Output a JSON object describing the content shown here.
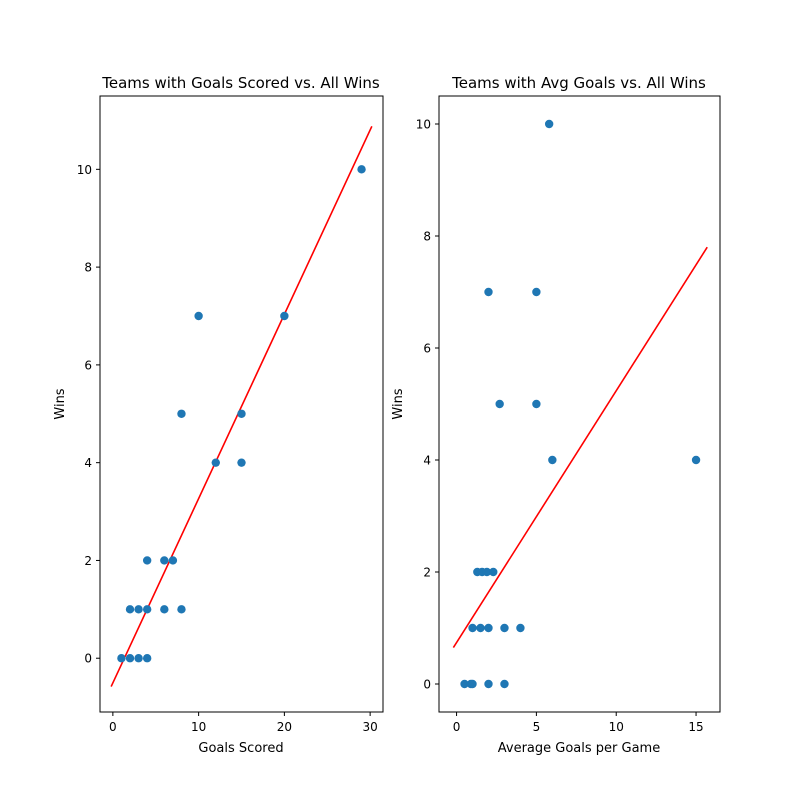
{
  "chart_data": [
    {
      "type": "scatter",
      "title": "Teams with Goals Scored vs. All Wins",
      "xlabel": "Goals Scored",
      "ylabel": "Wins",
      "xlim": [
        -1.5,
        31.5
      ],
      "ylim": [
        -1.1,
        11.5
      ],
      "xticks": [
        0,
        10,
        20,
        30
      ],
      "yticks": [
        0,
        2,
        4,
        6,
        8,
        10
      ],
      "grid": false,
      "point_color": "#1f77b4",
      "line_color": "#ff0000",
      "points": [
        {
          "x": 1,
          "y": 0
        },
        {
          "x": 2,
          "y": 0
        },
        {
          "x": 3,
          "y": 0
        },
        {
          "x": 4,
          "y": 0
        },
        {
          "x": 2,
          "y": 1
        },
        {
          "x": 3,
          "y": 1
        },
        {
          "x": 4,
          "y": 1
        },
        {
          "x": 6,
          "y": 1
        },
        {
          "x": 8,
          "y": 1
        },
        {
          "x": 4,
          "y": 2
        },
        {
          "x": 6,
          "y": 2
        },
        {
          "x": 7,
          "y": 2
        },
        {
          "x": 12,
          "y": 4
        },
        {
          "x": 15,
          "y": 4
        },
        {
          "x": 8,
          "y": 5
        },
        {
          "x": 15,
          "y": 5
        },
        {
          "x": 10,
          "y": 7
        },
        {
          "x": 20,
          "y": 7
        },
        {
          "x": 29,
          "y": 10
        }
      ],
      "trend_line": {
        "x": [
          -0.2,
          30.2
        ],
        "y": [
          -0.58,
          10.88
        ]
      }
    },
    {
      "type": "scatter",
      "title": "Teams with Avg Goals vs. All Wins",
      "xlabel": "Average Goals per Game",
      "ylabel": "Wins",
      "xlim": [
        -1.1,
        16.5
      ],
      "ylim": [
        -0.5,
        10.5
      ],
      "xticks": [
        0,
        5,
        10,
        15
      ],
      "yticks": [
        0,
        2,
        4,
        6,
        8,
        10
      ],
      "grid": false,
      "point_color": "#1f77b4",
      "line_color": "#ff0000",
      "points": [
        {
          "x": 0.5,
          "y": 0
        },
        {
          "x": 0.9,
          "y": 0
        },
        {
          "x": 1.0,
          "y": 0
        },
        {
          "x": 2.0,
          "y": 0
        },
        {
          "x": 3.0,
          "y": 0
        },
        {
          "x": 1.0,
          "y": 1
        },
        {
          "x": 1.5,
          "y": 1
        },
        {
          "x": 2.0,
          "y": 1
        },
        {
          "x": 3.0,
          "y": 1
        },
        {
          "x": 4.0,
          "y": 1
        },
        {
          "x": 1.3,
          "y": 2
        },
        {
          "x": 1.6,
          "y": 2
        },
        {
          "x": 1.9,
          "y": 2
        },
        {
          "x": 2.3,
          "y": 2
        },
        {
          "x": 6.0,
          "y": 4
        },
        {
          "x": 15.0,
          "y": 4
        },
        {
          "x": 2.7,
          "y": 5
        },
        {
          "x": 5.0,
          "y": 5
        },
        {
          "x": 2.0,
          "y": 7
        },
        {
          "x": 5.0,
          "y": 7
        },
        {
          "x": 5.8,
          "y": 10
        }
      ],
      "trend_line": {
        "x": [
          -0.2,
          15.7
        ],
        "y": [
          0.65,
          7.8
        ]
      }
    }
  ]
}
